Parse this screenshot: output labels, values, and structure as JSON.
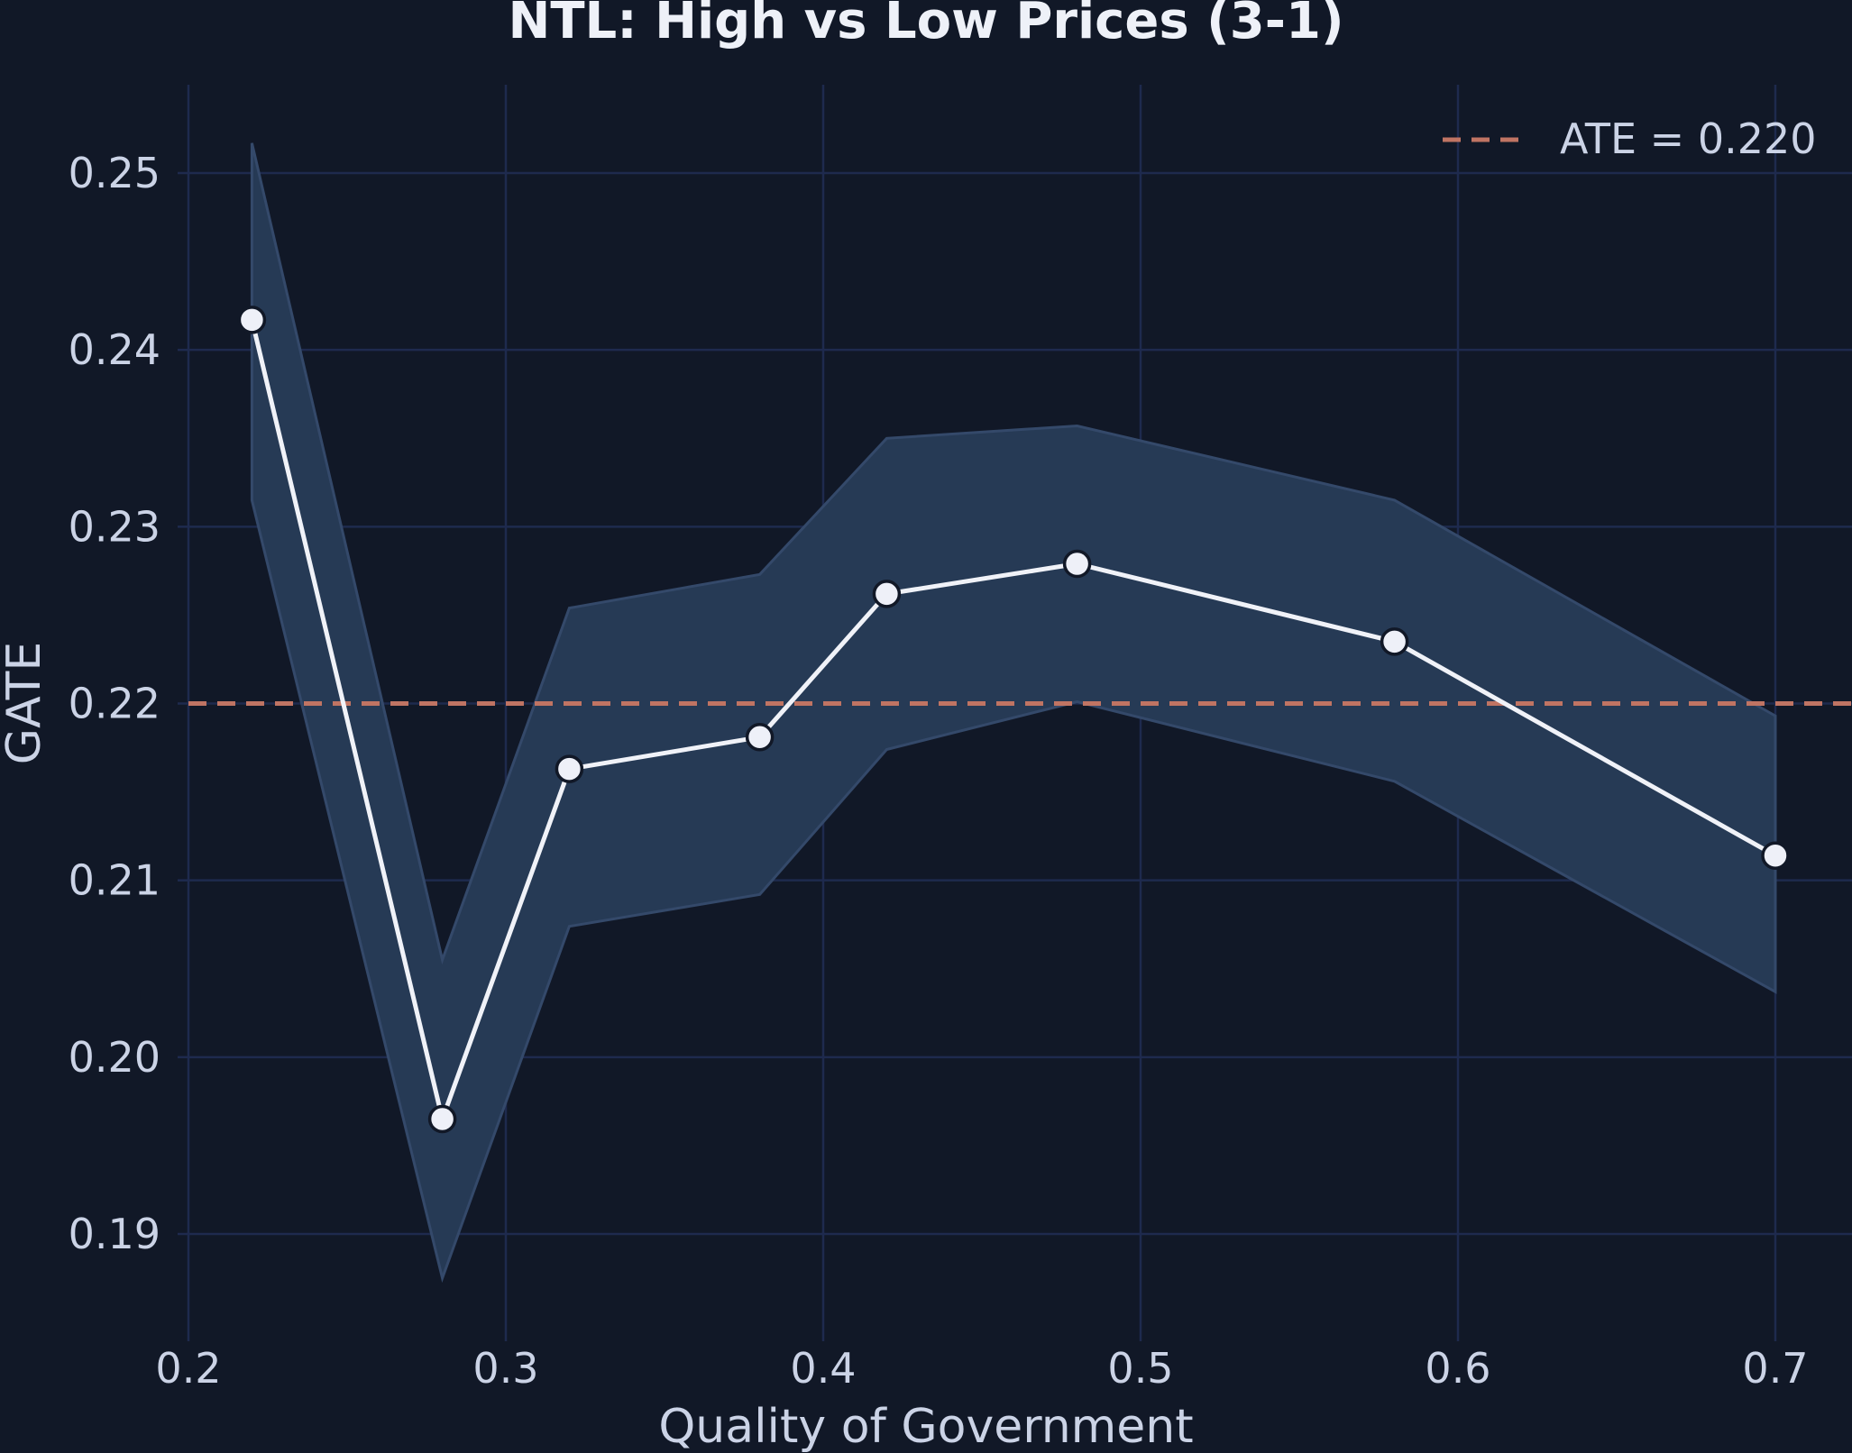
{
  "chart_data": {
    "type": "line",
    "title": "NTL: High vs Low Prices (3-1)",
    "xlabel": "Quality of Government",
    "ylabel": "GATE",
    "xlim": [
      0.2,
      0.71
    ],
    "ylim": [
      0.1855,
      0.2553
    ],
    "x_ticks": [
      0.2,
      0.3,
      0.4,
      0.5,
      0.6,
      0.7
    ],
    "x_tick_labels": [
      "0.2",
      "0.3",
      "0.4",
      "0.5",
      "0.6",
      "0.7"
    ],
    "y_ticks": [
      0.19,
      0.2,
      0.21,
      0.22,
      0.23,
      0.24,
      0.25
    ],
    "y_tick_labels": [
      "0.19",
      "0.20",
      "0.21",
      "0.22",
      "0.23",
      "0.24",
      "0.25"
    ],
    "grid": true,
    "series": [
      {
        "x": [
          0.22,
          0.28,
          0.32,
          0.38,
          0.42,
          0.48,
          0.58,
          0.7
        ],
        "y": [
          0.2417,
          0.1965,
          0.2163,
          0.2181,
          0.2262,
          0.2279,
          0.2235,
          0.2114
        ],
        "lower": [
          0.2315,
          0.1875,
          0.2074,
          0.2092,
          0.2174,
          0.2201,
          0.2156,
          0.2037
        ],
        "upper": [
          0.2517,
          0.2055,
          0.2254,
          0.2273,
          0.235,
          0.2357,
          0.2315,
          0.2193
        ],
        "color": "#f0f2f8",
        "band_color": "#263a55"
      }
    ],
    "reference_line": {
      "label": "ATE = 0.220",
      "y": 0.22,
      "color": "#c07463",
      "style": "dashed"
    },
    "legend_position": "top-right"
  }
}
